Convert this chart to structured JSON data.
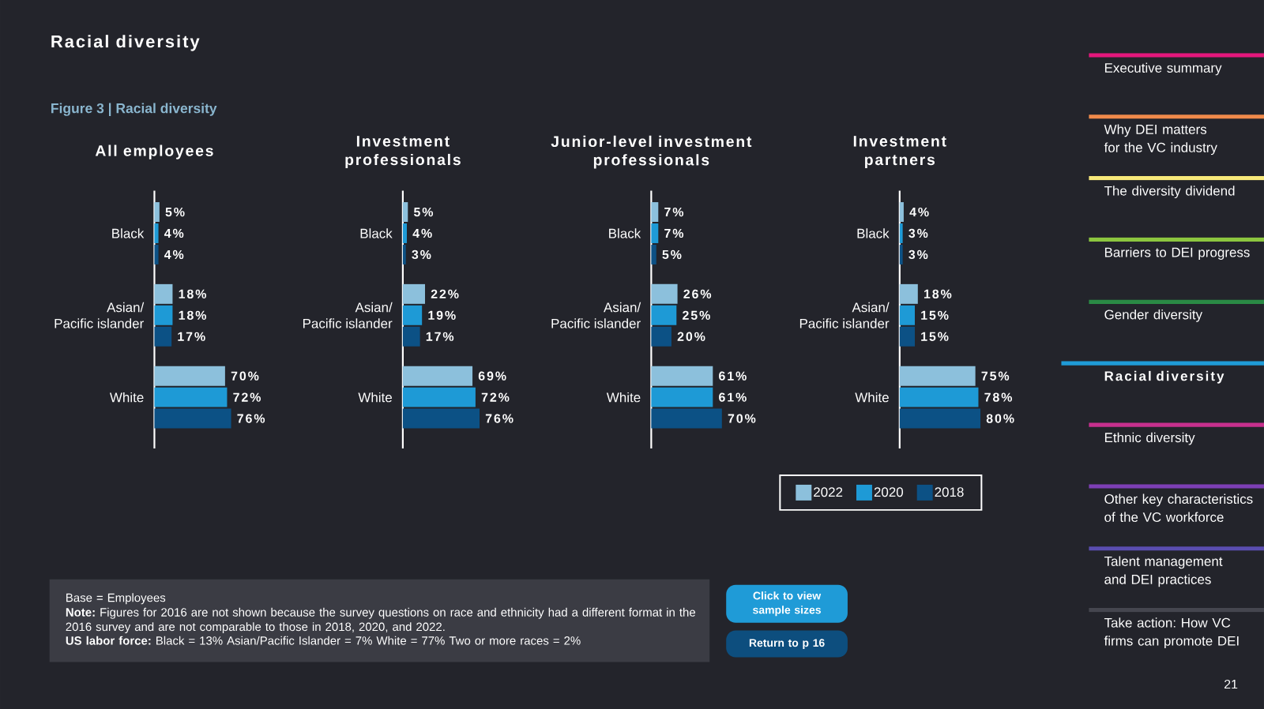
{
  "chart_data": [
    {
      "type": "other",
      "title": "Racial diversity",
      "subtitle": "Figure 3 | Racial diversity"
    },
    {
      "type": "bar",
      "orientation": "horizontal",
      "title": "All employees",
      "categories": [
        "Black",
        "Asian/\nPacific islander",
        "White"
      ],
      "tick_labels": "y",
      "series": [
        {
          "color": "#8cc0dc",
          "values": [
            5,
            18,
            70
          ],
          "value_labels": [
            "5%",
            "18%",
            "70%"
          ]
        },
        {
          "color": "#1e9ad6",
          "values": [
            4,
            18,
            72
          ],
          "value_labels": [
            "4%",
            "18%",
            "72%"
          ]
        },
        {
          "color": "#0c5185",
          "values": [
            4,
            17,
            76
          ],
          "value_labels": [
            "4%",
            "17%",
            "76%"
          ]
        }
      ]
    },
    {
      "type": "bar",
      "orientation": "horizontal",
      "title": "Investment\nprofessionals",
      "categories": [
        "Black",
        "Asian/\nPacific islander",
        "White"
      ],
      "tick_labels": "y",
      "series": [
        {
          "color": "#8cc0dc",
          "values": [
            5,
            22,
            69
          ],
          "value_labels": [
            "5%",
            "22%",
            "69%"
          ]
        },
        {
          "color": "#1e9ad6",
          "values": [
            4,
            19,
            72
          ],
          "value_labels": [
            "4%",
            "19%",
            "72%"
          ]
        },
        {
          "color": "#0c5185",
          "values": [
            3,
            17,
            76
          ],
          "value_labels": [
            "3%",
            "17%",
            "76%"
          ]
        }
      ]
    },
    {
      "type": "bar",
      "orientation": "horizontal",
      "title": "Junior-level investment\nprofessionals",
      "categories": [
        "Black",
        "Asian/\nPacific islander",
        "White"
      ],
      "tick_labels": "y",
      "series": [
        {
          "color": "#8cc0dc",
          "values": [
            7,
            26,
            61
          ],
          "value_labels": [
            "7%",
            "26%",
            "61%"
          ]
        },
        {
          "color": "#1e9ad6",
          "values": [
            7,
            25,
            61
          ],
          "value_labels": [
            "7%",
            "25%",
            "61%"
          ]
        },
        {
          "color": "#0c5185",
          "values": [
            5,
            20,
            70
          ],
          "value_labels": [
            "5%",
            "20%",
            "70%"
          ]
        }
      ]
    },
    {
      "type": "bar",
      "orientation": "horizontal",
      "title": "Investment\npartners",
      "categories": [
        "Black",
        "Asian/\nPacific islander",
        "White"
      ],
      "tick_labels": "y",
      "legend": "bottom",
      "series": [
        {
          "name": "2022",
          "color": "#8cc0dc",
          "values": [
            4,
            18,
            75
          ],
          "value_labels": [
            "4%",
            "18%",
            "75%"
          ]
        },
        {
          "name": "2020",
          "color": "#1e9ad6",
          "values": [
            3,
            15,
            78
          ],
          "value_labels": [
            "3%",
            "15%",
            "78%"
          ]
        },
        {
          "name": "2018",
          "color": "#0c5185",
          "values": [
            3,
            15,
            80
          ],
          "value_labels": [
            "3%",
            "15%",
            "80%"
          ]
        }
      ]
    },
    {
      "type": "other",
      "annotations": [
        "Base = Employees",
        "**Note:** Figures for 2016 are not shown because the survey questions on race and ethnicity had a different format in the 2016 survey and are not comparable to those in 2018, 2020, and 2022.",
        "**US labor force:** Black = 13%   Asian/Pacific Islander = 7%  White = 77%  Two or more races = 2%",
        "Click to view\nsample sizes",
        "Return to p 16",
        "Executive summary",
        "Why DEI matters\nfor the VC industry",
        "The diversity dividend",
        "Barriers to DEI progress",
        "Gender diversity",
        "Racial diversity",
        "Ethnic diversity",
        "Other key characteristics\nof the VC workforce",
        "Talent management\nand DEI practices",
        "Take action: How VC\nfirms can promote DEI",
        "21"
      ]
    }
  ]
}
